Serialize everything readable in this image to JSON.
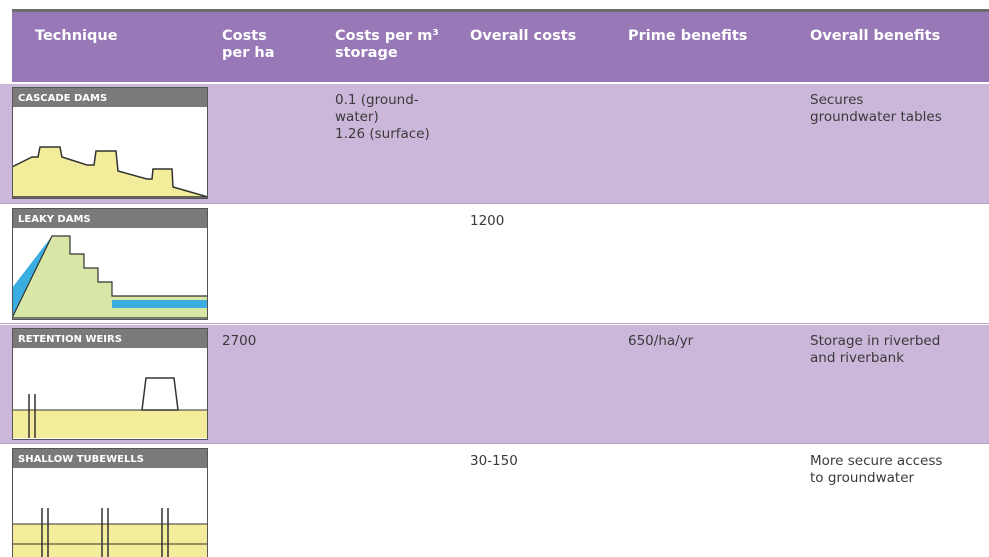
{
  "table": {
    "header": [
      "Technique",
      [
        "Costs",
        "per ha"
      ],
      [
        "Costs per m³",
        "storage"
      ],
      "Overall costs",
      "Prime benefits",
      "Overall benefits"
    ],
    "rows": [
      {
        "technique": "CASCADE DAMS",
        "costs_per_m3": [
          "0.1 (ground-",
          "water)",
          "1.26 (surface)"
        ],
        "overall_benefits": [
          "Secures",
          "groundwater tables"
        ]
      },
      {
        "technique": "LEAKY DAMS",
        "overall_costs": "1200"
      },
      {
        "technique": "RETENTION WEIRS",
        "costs_per_ha": "2700",
        "prime_benefits": "650/ha/yr",
        "overall_benefits": [
          "Storage in riverbed",
          "and riverbank"
        ]
      },
      {
        "technique": "SHALLOW TUBEWELLS",
        "overall_costs": "30-150",
        "overall_benefits": [
          "More secure access",
          "to groundwater"
        ]
      }
    ]
  }
}
